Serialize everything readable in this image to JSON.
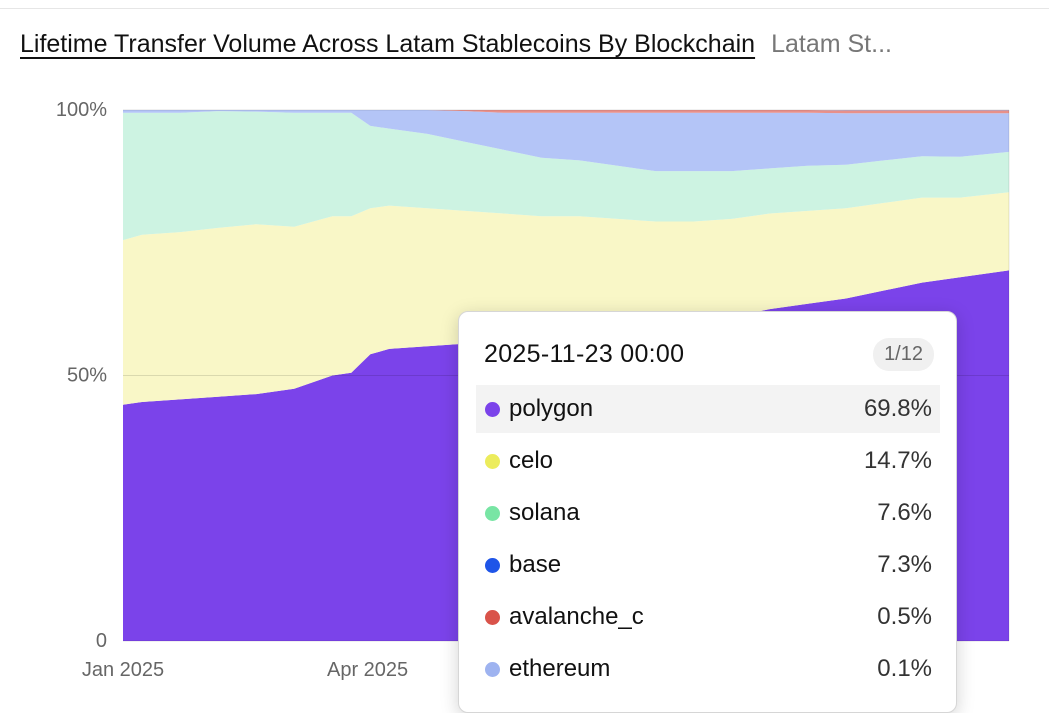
{
  "header": {
    "title": "Lifetime Transfer Volume Across Latam Stablecoins By Blockchain",
    "subtitle": "Latam St..."
  },
  "chart_data": {
    "type": "area",
    "stacked": true,
    "normalized": true,
    "title": "Lifetime Transfer Volume Across Latam Stablecoins By Blockchain",
    "y_ticks": [
      "100%",
      "50%",
      "0"
    ],
    "x_ticks": [
      "Jan 2025",
      "Apr 2025"
    ],
    "ylim": [
      0,
      100
    ],
    "x": [
      "2025-01-01",
      "2025-01-08",
      "2025-01-22",
      "2025-02-05",
      "2025-02-19",
      "2025-03-05",
      "2025-03-19",
      "2025-03-26",
      "2025-04-02",
      "2025-04-09",
      "2025-04-23",
      "2025-05-07",
      "2025-05-21",
      "2025-06-04",
      "2025-06-18",
      "2025-07-02",
      "2025-07-16",
      "2025-07-30",
      "2025-08-13",
      "2025-08-27",
      "2025-09-10",
      "2025-09-24",
      "2025-10-08",
      "2025-10-22",
      "2025-11-05",
      "2025-11-23"
    ],
    "series": [
      {
        "name": "polygon",
        "color": "#7b43ea",
        "values": [
          44.5,
          45.0,
          45.5,
          46.0,
          46.5,
          47.5,
          50.0,
          50.5,
          54.0,
          55.0,
          55.5,
          56.0,
          56.5,
          57.0,
          57.5,
          58.0,
          58.5,
          59.5,
          61.0,
          62.5,
          63.5,
          64.5,
          66.0,
          67.5,
          68.5,
          69.8
        ]
      },
      {
        "name": "celo",
        "color": "#f9f7c7",
        "values": [
          31.0,
          31.5,
          31.5,
          31.8,
          32.0,
          30.5,
          30.0,
          29.5,
          27.5,
          27.0,
          26.0,
          25.0,
          24.0,
          23.0,
          22.5,
          21.5,
          20.5,
          19.5,
          18.5,
          18.0,
          17.5,
          17.0,
          16.5,
          16.0,
          15.0,
          14.7
        ]
      },
      {
        "name": "solana",
        "color": "#cdf3e2",
        "values": [
          24.0,
          23.0,
          22.5,
          22.0,
          21.2,
          21.5,
          19.5,
          19.5,
          15.5,
          14.5,
          14.0,
          13.0,
          12.0,
          11.0,
          10.5,
          10.0,
          9.5,
          9.5,
          9.0,
          8.5,
          8.5,
          8.2,
          8.0,
          7.8,
          7.7,
          7.6
        ]
      },
      {
        "name": "base",
        "color": "#b4c5f7",
        "values": [
          0.5,
          0.5,
          0.5,
          0.2,
          0.3,
          0.5,
          0.5,
          0.5,
          3.0,
          3.5,
          4.5,
          5.8,
          7.0,
          8.5,
          9.0,
          10.0,
          11.0,
          11.0,
          11.0,
          10.5,
          10.0,
          9.7,
          8.9,
          8.1,
          8.2,
          7.3
        ]
      },
      {
        "name": "avalanche_c",
        "color": "#e8908a",
        "values": [
          0,
          0,
          0,
          0,
          0,
          0,
          0,
          0,
          0,
          0,
          0,
          0.2,
          0.5,
          0.5,
          0.5,
          0.5,
          0.5,
          0.5,
          0.5,
          0.5,
          0.5,
          0.5,
          0.5,
          0.5,
          0.5,
          0.5
        ]
      },
      {
        "name": "ethereum",
        "color": "#a9bef3",
        "values": [
          0,
          0,
          0,
          0,
          0,
          0,
          0,
          0,
          0,
          0,
          0,
          0,
          0,
          0,
          0,
          0,
          0,
          0,
          0,
          0,
          0,
          0.1,
          0.1,
          0.1,
          0.1,
          0.1
        ]
      }
    ]
  },
  "tooltip": {
    "date": "2025-11-23 00:00",
    "page": "1/12",
    "rows": [
      {
        "name": "polygon",
        "value": "69.8%",
        "color": "#7b43ea"
      },
      {
        "name": "celo",
        "value": "14.7%",
        "color": "#ecec5c"
      },
      {
        "name": "solana",
        "value": "7.6%",
        "color": "#78e5a4"
      },
      {
        "name": "base",
        "value": "7.3%",
        "color": "#1f55e8"
      },
      {
        "name": "avalanche_c",
        "value": "0.5%",
        "color": "#d9534a"
      },
      {
        "name": "ethereum",
        "value": "0.1%",
        "color": "#9eb3f0"
      }
    ]
  }
}
